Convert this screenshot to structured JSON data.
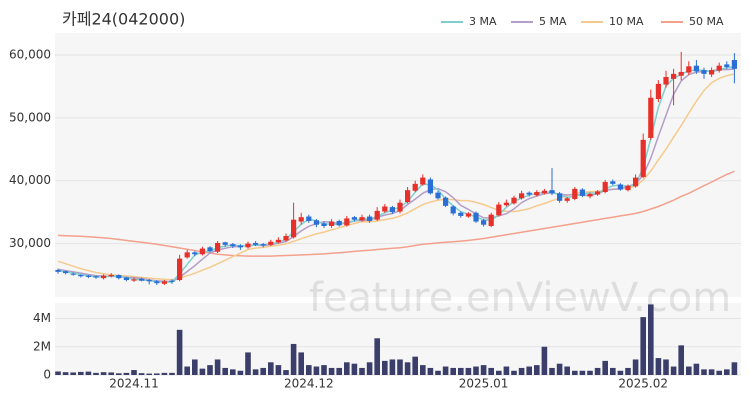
{
  "chart_data": {
    "type": "candlestick",
    "title": "카페24(042000)",
    "watermark": "feature.enViewV.com",
    "categories": [
      null,
      null,
      null,
      null,
      null,
      null,
      null,
      null,
      null,
      null,
      "2024.11",
      null,
      null,
      null,
      null,
      null,
      null,
      null,
      null,
      null,
      null,
      null,
      null,
      null,
      null,
      null,
      null,
      null,
      null,
      null,
      null,
      null,
      null,
      "2024.12",
      null,
      null,
      null,
      null,
      null,
      null,
      null,
      null,
      null,
      null,
      null,
      null,
      null,
      null,
      null,
      null,
      null,
      null,
      null,
      null,
      null,
      null,
      "2025.01",
      null,
      null,
      null,
      null,
      null,
      null,
      null,
      null,
      null,
      null,
      null,
      null,
      null,
      null,
      null,
      null,
      null,
      null,
      null,
      null,
      "2025.02",
      null,
      null,
      null,
      null,
      null,
      null,
      null,
      null,
      null,
      null,
      null,
      null
    ],
    "open": [
      25800,
      25600,
      25200,
      25000,
      24900,
      24800,
      24500,
      24800,
      25000,
      24600,
      24100,
      24400,
      24200,
      24000,
      23600,
      24100,
      24200,
      27800,
      28600,
      28300,
      29400,
      28700,
      30200,
      29900,
      29700,
      29400,
      30100,
      29900,
      29800,
      30200,
      30500,
      31000,
      33500,
      34300,
      33700,
      33200,
      32800,
      33600,
      32900,
      34200,
      33700,
      34300,
      33800,
      35100,
      35800,
      35100,
      36600,
      38400,
      39400,
      40200,
      38100,
      37300,
      35900,
      34900,
      34300,
      34900,
      33700,
      32800,
      34500,
      36100,
      36400,
      37200,
      38100,
      37700,
      38000,
      38500,
      38000,
      36800,
      37100,
      38600,
      37500,
      37800,
      38200,
      39900,
      39400,
      38500,
      39100,
      40600,
      46800,
      53000,
      55300,
      56200,
      56700,
      57200,
      58300,
      57600,
      56900,
      57500,
      58500,
      59200
    ],
    "high": [
      26000,
      25700,
      25400,
      25100,
      25000,
      24900,
      25100,
      25300,
      25100,
      24700,
      24600,
      24600,
      24400,
      24200,
      24200,
      24300,
      28200,
      29000,
      28800,
      29500,
      29600,
      30400,
      30300,
      30100,
      29900,
      30300,
      30400,
      30100,
      30600,
      31000,
      31600,
      36500,
      34900,
      34600,
      33900,
      33500,
      33900,
      33800,
      34400,
      34400,
      34600,
      34600,
      35800,
      36300,
      36000,
      37000,
      39000,
      40000,
      41000,
      40500,
      38400,
      37500,
      36100,
      35100,
      35000,
      35100,
      33900,
      34900,
      36600,
      37000,
      37600,
      38400,
      38300,
      38500,
      38700,
      42000,
      38200,
      37400,
      39000,
      38800,
      38100,
      38500,
      40100,
      40200,
      39600,
      39400,
      41000,
      47500,
      54500,
      56000,
      57500,
      57800,
      60500,
      59000,
      59200,
      58000,
      58000,
      58800,
      59000,
      60300
    ],
    "low": [
      25200,
      25100,
      24900,
      24600,
      24500,
      24400,
      24300,
      24600,
      24300,
      24000,
      23900,
      24000,
      23500,
      23400,
      23400,
      23600,
      24000,
      27600,
      28000,
      28100,
      28600,
      28500,
      29500,
      29300,
      29000,
      29200,
      29600,
      29400,
      29600,
      30000,
      30300,
      30800,
      33000,
      33300,
      32600,
      32500,
      32500,
      32700,
      32700,
      33500,
      33500,
      33300,
      33600,
      34900,
      34700,
      34800,
      36400,
      38200,
      39200,
      37800,
      37000,
      35800,
      34500,
      34100,
      34100,
      33300,
      32700,
      32600,
      34300,
      35900,
      36200,
      37000,
      37500,
      37500,
      37800,
      37700,
      36500,
      36500,
      36900,
      37400,
      37200,
      37600,
      38000,
      39300,
      38400,
      38300,
      38900,
      40400,
      46500,
      52500,
      54800,
      52000,
      56000,
      56800,
      57000,
      56200,
      56500,
      57200,
      57800,
      55500
    ],
    "close": [
      25500,
      25300,
      25100,
      24800,
      24700,
      24600,
      24900,
      25000,
      24500,
      24200,
      24300,
      24100,
      24000,
      23700,
      24000,
      23900,
      27600,
      28600,
      28300,
      29200,
      28800,
      30100,
      29800,
      29600,
      29400,
      30000,
      29800,
      29700,
      30300,
      30600,
      31200,
      33800,
      34200,
      33600,
      33000,
      32800,
      33500,
      32900,
      34000,
      33800,
      34200,
      33600,
      35200,
      35900,
      35000,
      36500,
      38500,
      39500,
      40500,
      38000,
      37200,
      36000,
      34800,
      34400,
      34800,
      33500,
      33000,
      34600,
      36200,
      36500,
      37300,
      38000,
      37800,
      38200,
      38400,
      38000,
      36800,
      37200,
      38700,
      37600,
      37900,
      38300,
      39800,
      39500,
      38600,
      39200,
      40500,
      46500,
      53200,
      55400,
      56500,
      57000,
      57300,
      58200,
      57400,
      57000,
      57600,
      58300,
      58100,
      57800
    ],
    "up_color": "#e8302a",
    "down_color": "#2a6fd6",
    "ylim": [
      21500,
      63500
    ],
    "yticks": [
      {
        "value": 30000,
        "label": "30,000"
      },
      {
        "value": 40000,
        "label": "40,000"
      },
      {
        "value": 50000,
        "label": "50,000"
      },
      {
        "value": 60000,
        "label": "60,000"
      }
    ],
    "grid": true,
    "legend_position": "top-right",
    "moving_averages": [
      {
        "name": "3 MA",
        "color": "#7fcfcf",
        "values": [
          25700,
          25500,
          25300,
          25070,
          24870,
          24700,
          24730,
          24830,
          24800,
          24570,
          24330,
          24200,
          24130,
          23930,
          23900,
          23870,
          25170,
          26700,
          28170,
          28700,
          28770,
          29370,
          29570,
          29830,
          29600,
          29670,
          29730,
          29830,
          29930,
          30200,
          30700,
          31870,
          33070,
          33870,
          33600,
          33130,
          33100,
          33070,
          33470,
          33570,
          34000,
          33870,
          34330,
          34900,
          35370,
          35800,
          36670,
          38170,
          39500,
          39330,
          38570,
          37070,
          36000,
          35070,
          34670,
          34230,
          33770,
          33700,
          34600,
          35770,
          36670,
          37270,
          37700,
          38000,
          38130,
          38200,
          37730,
          37330,
          37570,
          37830,
          38070,
          37930,
          38670,
          39200,
          39300,
          39100,
          39430,
          42070,
          46730,
          51700,
          55030,
          56300,
          56930,
          57500,
          57630,
          57530,
          57330,
          57630,
          58000,
          58070
        ]
      },
      {
        "name": "5 MA",
        "color": "#b49dc9",
        "values": [
          25900,
          25700,
          25500,
          25300,
          25080,
          24900,
          24820,
          24800,
          24740,
          24640,
          24580,
          24420,
          24220,
          24060,
          24020,
          23940,
          24640,
          25560,
          26480,
          27520,
          28500,
          28980,
          29240,
          29500,
          29540,
          29780,
          29720,
          29700,
          29840,
          30080,
          30320,
          31120,
          32020,
          32740,
          33160,
          33480,
          33420,
          33160,
          33240,
          33600,
          33680,
          33700,
          34160,
          34540,
          34780,
          35240,
          36220,
          37080,
          38000,
          38600,
          38740,
          38240,
          37300,
          36080,
          35440,
          34700,
          34100,
          34060,
          34420,
          34760,
          35520,
          36520,
          37160,
          37560,
          37940,
          38080,
          37840,
          37720,
          37820,
          37660,
          37640,
          37940,
          38460,
          38620,
          38740,
          39080,
          39520,
          40860,
          43600,
          47060,
          50420,
          53720,
          55880,
          56880,
          57280,
          57380,
          57500,
          57700,
          57680,
          57760
        ]
      },
      {
        "name": "10 MA",
        "color": "#f5ca8e",
        "values": [
          27200,
          26800,
          26400,
          26000,
          25700,
          25400,
          25200,
          25050,
          24900,
          24860,
          24740,
          24620,
          24510,
          24400,
          24330,
          24260,
          24530,
          24890,
          25270,
          25770,
          26220,
          26790,
          27340,
          27930,
          28470,
          29060,
          29280,
          29390,
          29590,
          29730,
          29970,
          30340,
          30780,
          31180,
          31540,
          31820,
          32190,
          32510,
          32880,
          33200,
          33500,
          33480,
          33580,
          33810,
          34010,
          34380,
          34880,
          35540,
          36200,
          36600,
          36900,
          37040,
          37000,
          36860,
          36840,
          36550,
          36220,
          35730,
          35300,
          35150,
          35080,
          35280,
          35560,
          36010,
          36370,
          36820,
          37200,
          37620,
          38020,
          38130,
          38270,
          38280,
          38480,
          38660,
          38680,
          38800,
          39170,
          40100,
          41550,
          43330,
          45020,
          46930,
          48790,
          50760,
          52650,
          54360,
          55600,
          56300,
          56700,
          57000
        ]
      },
      {
        "name": "50 MA",
        "color": "#f4a08d",
        "values": [
          31300,
          31250,
          31200,
          31150,
          31100,
          31000,
          30900,
          30800,
          30650,
          30500,
          30350,
          30200,
          30050,
          29900,
          29700,
          29500,
          29300,
          29100,
          28900,
          28700,
          28500,
          28300,
          28200,
          28100,
          28050,
          28000,
          28000,
          28000,
          28000,
          28050,
          28100,
          28150,
          28200,
          28250,
          28300,
          28350,
          28450,
          28550,
          28650,
          28750,
          28850,
          28950,
          29050,
          29150,
          29250,
          29350,
          29500,
          29700,
          29900,
          30000,
          30100,
          30200,
          30300,
          30400,
          30500,
          30650,
          30800,
          31000,
          31200,
          31400,
          31600,
          31800,
          32000,
          32200,
          32400,
          32600,
          32800,
          33000,
          33200,
          33400,
          33600,
          33800,
          34000,
          34200,
          34400,
          34600,
          34800,
          35100,
          35500,
          35900,
          36400,
          36900,
          37500,
          38000,
          38600,
          39200,
          39800,
          40400,
          41000,
          41500
        ]
      }
    ],
    "volume": {
      "color": "#3b3d6a",
      "ylim": [
        0,
        5100000
      ],
      "yticks": [
        0,
        {
          "value": 2000000,
          "label": "2M"
        },
        {
          "value": 4000000,
          "label": "4M"
        }
      ],
      "values": [
        250000,
        200000,
        180000,
        220000,
        240000,
        150000,
        200000,
        180000,
        120000,
        150000,
        350000,
        130000,
        100000,
        110000,
        150000,
        150000,
        3200000,
        600000,
        1100000,
        450000,
        700000,
        1100000,
        500000,
        400000,
        300000,
        1600000,
        400000,
        500000,
        900000,
        700000,
        350000,
        2200000,
        1600000,
        700000,
        600000,
        700000,
        500000,
        500000,
        900000,
        800000,
        500000,
        900000,
        2600000,
        1000000,
        1100000,
        1100000,
        900000,
        1300000,
        700000,
        500000,
        300000,
        600000,
        500000,
        500000,
        500000,
        600000,
        700000,
        500000,
        300000,
        600000,
        300000,
        500000,
        600000,
        700000,
        2000000,
        500000,
        800000,
        600000,
        300000,
        300000,
        300000,
        500000,
        1000000,
        500000,
        300000,
        500000,
        1100000,
        4100000,
        5000000,
        1200000,
        1100000,
        600000,
        2100000,
        600000,
        800000,
        400000,
        400000,
        300000,
        400000,
        900000
      ]
    }
  }
}
